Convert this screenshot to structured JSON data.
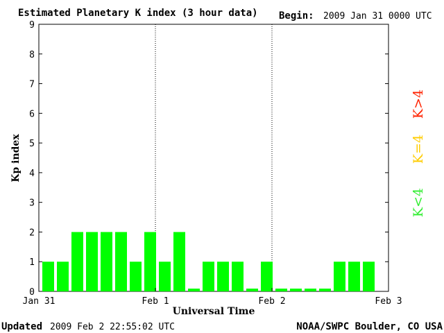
{
  "chart_data": {
    "type": "bar",
    "title": "Estimated Planetary K index (3 hour data)",
    "begin_label": "Begin:",
    "begin_value": "2009 Jan 31 0000 UTC",
    "ylabel": "Kp index",
    "xlabel": "Universal Time",
    "ylim": [
      0,
      9
    ],
    "yticks": [
      0,
      1,
      2,
      3,
      4,
      5,
      6,
      7,
      8,
      9
    ],
    "x_tick_labels": [
      "Jan 31",
      "Feb 1",
      "Feb 2",
      "Feb 3"
    ],
    "day_separators": [
      "Feb 1",
      "Feb 2"
    ],
    "grid": false,
    "interval_hours": 3,
    "values": [
      1,
      1,
      2,
      2,
      2,
      2,
      1,
      2,
      1,
      2,
      0,
      1,
      1,
      1,
      0,
      1,
      0,
      0,
      0,
      0,
      1,
      1,
      1
    ],
    "bar_color": "#00ff00",
    "legend": [
      {
        "label": "K<4",
        "color": "#33ee33"
      },
      {
        "label": "K=4",
        "color": "#ffcc00"
      },
      {
        "label": "K>4",
        "color": "#ff2200"
      }
    ],
    "legend_placement": "right"
  },
  "footer": {
    "updated_label": "Updated",
    "updated_value": "2009 Feb  2 22:55:02 UTC",
    "source": "NOAA/SWPC Boulder, CO USA"
  }
}
